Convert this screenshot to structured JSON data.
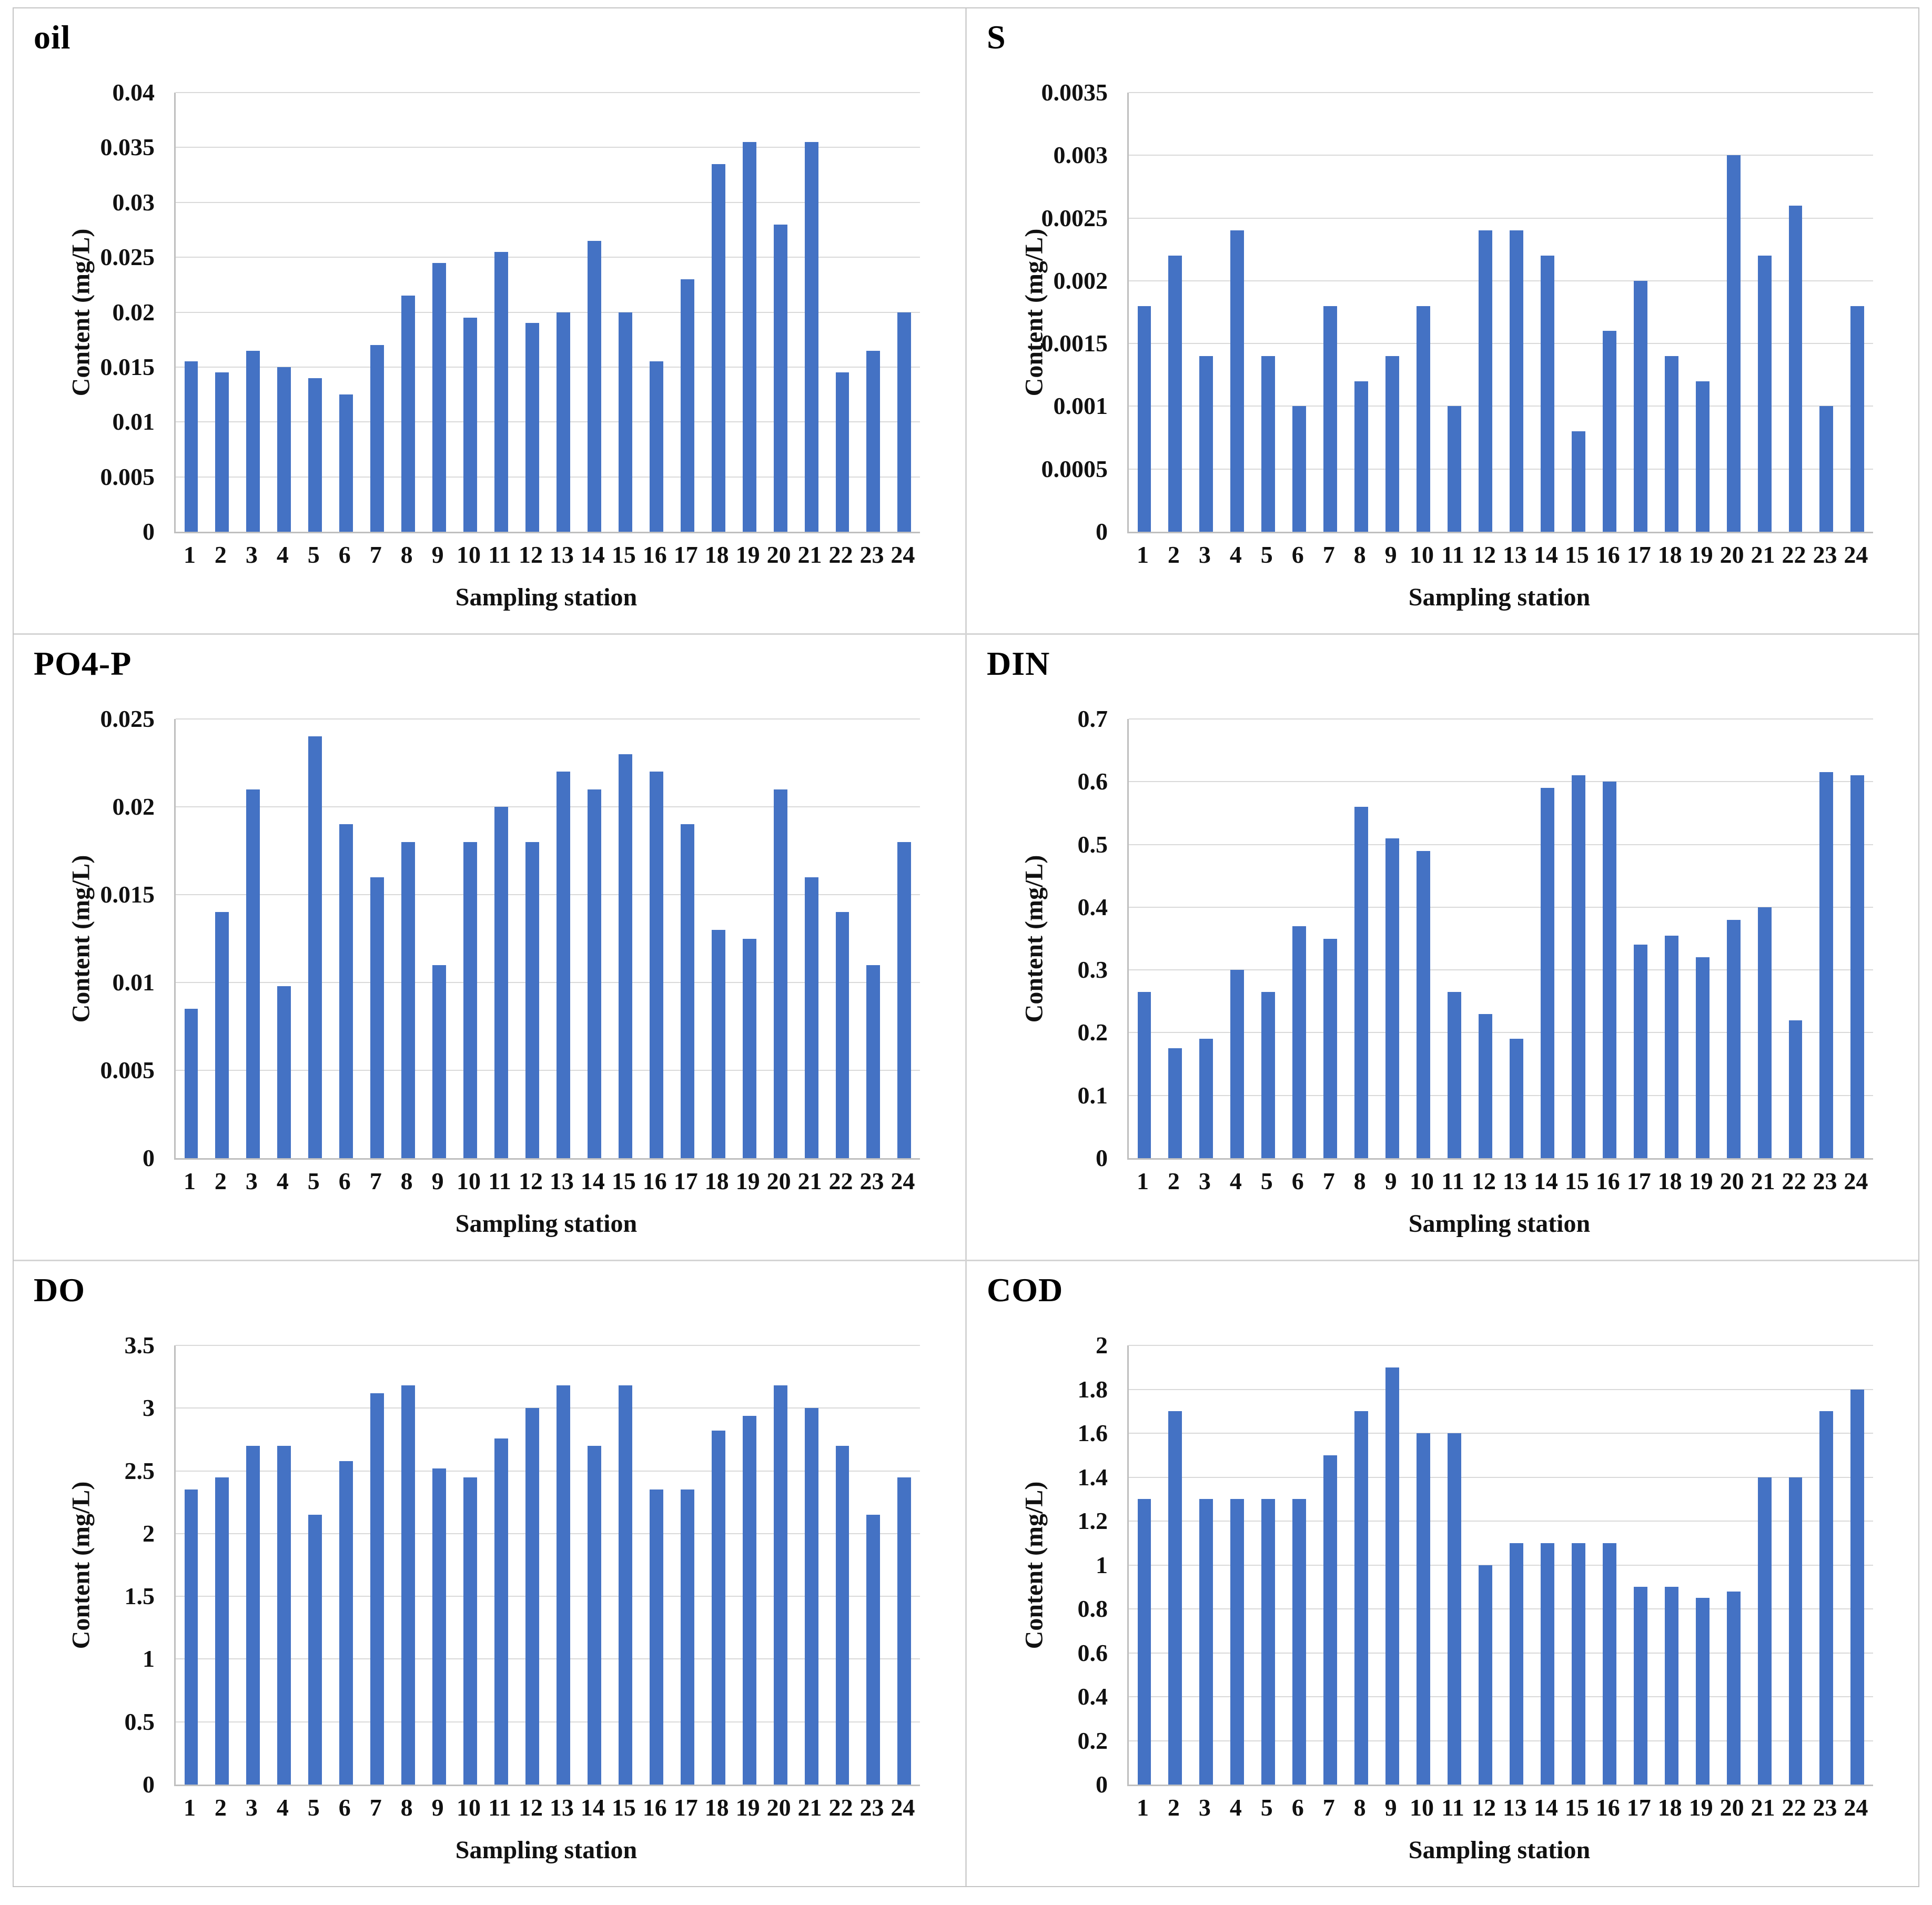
{
  "page": {
    "background": "#ffffff",
    "outer_border_color": "#c4c4c4",
    "panel_divider_color": "#d4d4d4"
  },
  "colors": {
    "bar": "#4472c4",
    "gridline": "#d9d9d9",
    "axis_line": "#bfbfbf",
    "text": "#111111"
  },
  "shared": {
    "xlabel": "Sampling station",
    "ylabel": "Content (mg/L)",
    "categories": [
      "1",
      "2",
      "3",
      "4",
      "5",
      "6",
      "7",
      "8",
      "9",
      "10",
      "11",
      "12",
      "13",
      "14",
      "15",
      "16",
      "17",
      "18",
      "19",
      "20",
      "21",
      "22",
      "23",
      "24"
    ]
  },
  "chart_data": [
    {
      "type": "bar",
      "title": "oil",
      "xlabel": "Sampling station",
      "ylabel": "Content (mg/L)",
      "categories": [
        "1",
        "2",
        "3",
        "4",
        "5",
        "6",
        "7",
        "8",
        "9",
        "10",
        "11",
        "12",
        "13",
        "14",
        "15",
        "16",
        "17",
        "18",
        "19",
        "20",
        "21",
        "22",
        "23",
        "24"
      ],
      "values": [
        0.0155,
        0.0145,
        0.0165,
        0.015,
        0.014,
        0.0125,
        0.017,
        0.0215,
        0.0245,
        0.0195,
        0.0255,
        0.019,
        0.02,
        0.0265,
        0.02,
        0.0155,
        0.023,
        0.0335,
        0.0355,
        0.028,
        0.0355,
        0.0145,
        0.0165,
        0.02
      ],
      "ylim": [
        0,
        0.04
      ],
      "ytick_labels": [
        "0",
        "0.005",
        "0.01",
        "0.015",
        "0.02",
        "0.025",
        "0.03",
        "0.035",
        "0.04"
      ],
      "grid": true,
      "legend": "none"
    },
    {
      "type": "bar",
      "title": "S",
      "xlabel": "Sampling station",
      "ylabel": "Content (mg/L)",
      "categories": [
        "1",
        "2",
        "3",
        "4",
        "5",
        "6",
        "7",
        "8",
        "9",
        "10",
        "11",
        "12",
        "13",
        "14",
        "15",
        "16",
        "17",
        "18",
        "19",
        "20",
        "21",
        "22",
        "23",
        "24"
      ],
      "values": [
        0.0018,
        0.0022,
        0.0014,
        0.0024,
        0.0014,
        0.001,
        0.0018,
        0.0012,
        0.0014,
        0.0018,
        0.001,
        0.0024,
        0.0024,
        0.0022,
        0.0008,
        0.0016,
        0.002,
        0.0014,
        0.0012,
        0.003,
        0.0022,
        0.0026,
        0.001,
        0.0018
      ],
      "ylim": [
        0,
        0.0035
      ],
      "ytick_labels": [
        "0",
        "0.0005",
        "0.001",
        "0.0015",
        "0.002",
        "0.0025",
        "0.003",
        "0.0035"
      ],
      "grid": true,
      "legend": "none"
    },
    {
      "type": "bar",
      "title": "PO4-P",
      "xlabel": "Sampling station",
      "ylabel": "Content (mg/L)",
      "categories": [
        "1",
        "2",
        "3",
        "4",
        "5",
        "6",
        "7",
        "8",
        "9",
        "10",
        "11",
        "12",
        "13",
        "14",
        "15",
        "16",
        "17",
        "18",
        "19",
        "20",
        "21",
        "22",
        "23",
        "24"
      ],
      "values": [
        0.0085,
        0.014,
        0.021,
        0.0098,
        0.024,
        0.019,
        0.016,
        0.018,
        0.011,
        0.018,
        0.02,
        0.018,
        0.022,
        0.021,
        0.023,
        0.022,
        0.019,
        0.013,
        0.0125,
        0.021,
        0.016,
        0.014,
        0.011,
        0.018
      ],
      "ylim": [
        0,
        0.025
      ],
      "ytick_labels": [
        "0",
        "0.005",
        "0.01",
        "0.015",
        "0.02",
        "0.025"
      ],
      "grid": true,
      "legend": "none"
    },
    {
      "type": "bar",
      "title": "DIN",
      "xlabel": "Sampling station",
      "ylabel": "Content (mg/L)",
      "categories": [
        "1",
        "2",
        "3",
        "4",
        "5",
        "6",
        "7",
        "8",
        "9",
        "10",
        "11",
        "12",
        "13",
        "14",
        "15",
        "16",
        "17",
        "18",
        "19",
        "20",
        "21",
        "22",
        "23",
        "24"
      ],
      "values": [
        0.265,
        0.175,
        0.19,
        0.3,
        0.265,
        0.37,
        0.35,
        0.56,
        0.51,
        0.49,
        0.265,
        0.23,
        0.19,
        0.59,
        0.61,
        0.6,
        0.34,
        0.355,
        0.32,
        0.38,
        0.4,
        0.22,
        0.615,
        0.61
      ],
      "ylim": [
        0,
        0.7
      ],
      "ytick_labels": [
        "0",
        "0.1",
        "0.2",
        "0.3",
        "0.4",
        "0.5",
        "0.6",
        "0.7"
      ],
      "grid": true,
      "legend": "none"
    },
    {
      "type": "bar",
      "title": "DO",
      "xlabel": "Sampling station",
      "ylabel": "Content (mg/L)",
      "categories": [
        "1",
        "2",
        "3",
        "4",
        "5",
        "6",
        "7",
        "8",
        "9",
        "10",
        "11",
        "12",
        "13",
        "14",
        "15",
        "16",
        "17",
        "18",
        "19",
        "20",
        "21",
        "22",
        "23",
        "24"
      ],
      "values": [
        2.35,
        2.45,
        2.7,
        2.7,
        2.15,
        2.58,
        3.12,
        3.18,
        2.52,
        2.45,
        2.76,
        3.0,
        3.18,
        2.7,
        3.18,
        2.35,
        2.35,
        2.82,
        2.94,
        3.18,
        3.0,
        2.7,
        2.15,
        2.45
      ],
      "ylim": [
        0,
        3.5
      ],
      "ytick_labels": [
        "0",
        "0.5",
        "1",
        "1.5",
        "2",
        "2.5",
        "3",
        "3.5"
      ],
      "grid": true,
      "legend": "none"
    },
    {
      "type": "bar",
      "title": "COD",
      "xlabel": "Sampling station",
      "ylabel": "Content (mg/L)",
      "categories": [
        "1",
        "2",
        "3",
        "4",
        "5",
        "6",
        "7",
        "8",
        "9",
        "10",
        "11",
        "12",
        "13",
        "14",
        "15",
        "16",
        "17",
        "18",
        "19",
        "20",
        "21",
        "22",
        "23",
        "24"
      ],
      "values": [
        1.3,
        1.7,
        1.3,
        1.3,
        1.3,
        1.3,
        1.5,
        1.7,
        1.9,
        1.6,
        1.6,
        1.0,
        1.1,
        1.1,
        1.1,
        1.1,
        0.9,
        0.9,
        0.85,
        0.88,
        1.4,
        1.4,
        1.7,
        1.8
      ],
      "ylim": [
        0,
        2
      ],
      "ytick_labels": [
        "0",
        "0.2",
        "0.4",
        "0.6",
        "0.8",
        "1",
        "1.2",
        "1.4",
        "1.6",
        "1.8",
        "2"
      ],
      "grid": true,
      "legend": "none"
    }
  ]
}
